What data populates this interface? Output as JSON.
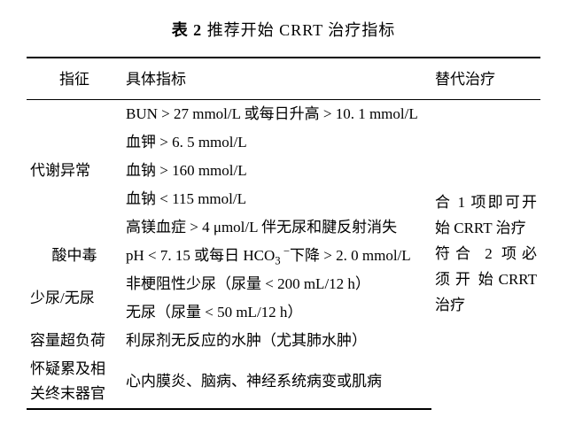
{
  "title_label": "表 2",
  "title_text": "推荐开始 CRRT 治疗指标",
  "headers": {
    "c1": "指征",
    "c2": "具体指标",
    "c3": "替代治疗"
  },
  "rows": {
    "r1_c2": "BUN > 27  mmol/L 或每日升高 > 10. 1 mmol/L",
    "r2_c1": "代谢异常",
    "r2_c2": "血钾 > 6. 5  mmol/L",
    "r3_c2": "血钠 > 160  mmol/L",
    "r4_c2": "血钠 < 115  mmol/L",
    "r5_c2": "高镁血症 > 4 μmol/L 伴无尿和腱反射消失",
    "r6_c1": "酸中毒",
    "r6_c2_a": "pH < 7. 15 或每日 HCO",
    "r6_c2_b": "下降 > 2. 0 mmol/L",
    "r7_c1": "少尿/无尿",
    "r7_c2": "非梗阻性少尿（尿量 < 200 mL/12 h）",
    "r8_c2": "无尿（尿量 < 50 mL/12 h）",
    "r9_c1": "容量超负荷",
    "r9_c2": "利尿剂无反应的水肿（尤其肺水肿）",
    "r10_c1a": "怀疑累及相",
    "r10_c1b": "关终末器官",
    "r10_c2": "心内膜炎、脑病、神经系统病变或肌病",
    "alt_a": "合 1 项即可开始 CRRT 治疗",
    "alt_b": "符合 2 项必须",
    "alt_c": "开",
    "alt_d": "始",
    "alt_e": "CRRT 治疗"
  },
  "colors": {
    "text": "#000000",
    "background": "#ffffff",
    "rule": "#000000"
  }
}
